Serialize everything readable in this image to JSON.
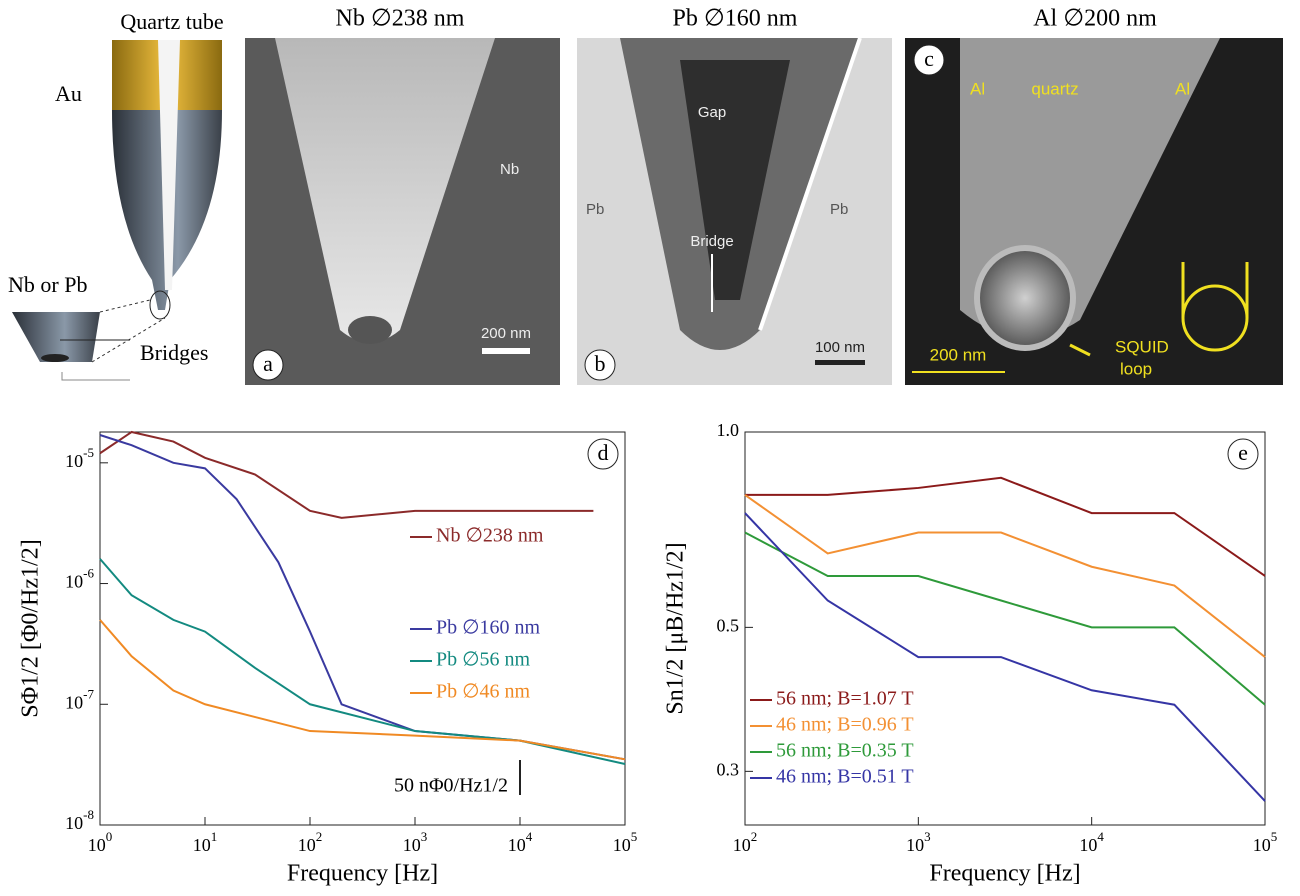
{
  "figure": {
    "schematic": {
      "quartz": "Quartz tube",
      "au": "Au",
      "nbpb": "Nb or Pb",
      "bridges": "Bridges"
    },
    "panels": [
      {
        "title": "Nb ∅238 nm",
        "letter": "a",
        "labels": [
          "Nb"
        ],
        "scale": "200 nm"
      },
      {
        "title": "Pb ∅160 nm",
        "letter": "b",
        "labels": [
          "Gap",
          "Bridge",
          "Pb",
          "Pb"
        ],
        "scale": "100 nm"
      },
      {
        "title": "Al ∅200 nm",
        "letter": "c",
        "labels": [
          "Al",
          "quartz",
          "Al",
          "SQUID",
          "loop"
        ],
        "scale": "200 nm"
      }
    ]
  },
  "chart_data": [
    {
      "type": "line",
      "panel": "d",
      "xlabel": "Frequency [Hz]",
      "ylabel": "SΦ1/2 [Φ0/Hz1/2]",
      "log_x": true,
      "log_y": true,
      "legend": "right",
      "xlim": [
        1,
        100000
      ],
      "ylim": [
        1e-08,
        1.8e-05
      ],
      "xticks": [
        {
          "value": 1,
          "label": "10",
          "power": "0"
        },
        {
          "value": 10,
          "label": "10",
          "power": "1"
        },
        {
          "value": 100,
          "label": "10",
          "power": "2"
        },
        {
          "value": 1000,
          "label": "10",
          "power": "3"
        },
        {
          "value": 10000,
          "label": "10",
          "power": "4"
        },
        {
          "value": 100000,
          "label": "10",
          "power": "5"
        }
      ],
      "yticks": [
        {
          "value": 1e-08,
          "label": "10",
          "power": "-8"
        },
        {
          "value": 1e-07,
          "label": "10",
          "power": "-7"
        },
        {
          "value": 1e-06,
          "label": "10",
          "power": "-6"
        },
        {
          "value": 1e-05,
          "label": "10",
          "power": "-5"
        }
      ],
      "annotation": {
        "text": "50 nΦ0/Hz1/2",
        "x": 10000
      },
      "series": [
        {
          "name": "Nb ∅238 nm",
          "color": "#8b2a2a",
          "x": [
            1,
            2,
            5,
            10,
            30,
            100,
            200,
            1000,
            10000,
            50000
          ],
          "values": [
            1.2e-05,
            1.8e-05,
            1.5e-05,
            1.1e-05,
            8e-06,
            4e-06,
            3.5e-06,
            4e-06,
            4e-06,
            4e-06
          ]
        },
        {
          "name": "Pb ∅160 nm",
          "color": "#3a3aa0",
          "x": [
            1,
            2,
            5,
            10,
            20,
            50,
            100,
            200,
            1000,
            10000,
            100000
          ],
          "values": [
            1.7e-05,
            1.4e-05,
            1e-05,
            9e-06,
            5e-06,
            1.5e-06,
            4e-07,
            1e-07,
            6e-08,
            5e-08,
            3.5e-08
          ]
        },
        {
          "name": "Pb ∅56 nm",
          "color": "#138a80",
          "x": [
            1,
            2,
            5,
            10,
            30,
            100,
            1000,
            10000,
            100000
          ],
          "values": [
            1.6e-06,
            8e-07,
            5e-07,
            4e-07,
            2e-07,
            1e-07,
            6e-08,
            5e-08,
            3.2e-08
          ]
        },
        {
          "name": "Pb ∅46 nm",
          "color": "#f08a24",
          "x": [
            1,
            2,
            5,
            10,
            100,
            1000,
            10000,
            100000
          ],
          "values": [
            5e-07,
            2.5e-07,
            1.3e-07,
            1e-07,
            6e-08,
            5.5e-08,
            5e-08,
            3.5e-08
          ]
        }
      ]
    },
    {
      "type": "line",
      "panel": "e",
      "xlabel": "Frequency [Hz]",
      "ylabel": "Sn1/2 [μB/Hz1/2]",
      "log_x": true,
      "log_y": true,
      "legend": "lower left",
      "xlim": [
        100,
        100000
      ],
      "ylim": [
        0.248,
        1
      ],
      "xticks": [
        {
          "value": 100,
          "label": "10",
          "power": "2"
        },
        {
          "value": 1000,
          "label": "10",
          "power": "3"
        },
        {
          "value": 10000,
          "label": "10",
          "power": "4"
        },
        {
          "value": 100000,
          "label": "10",
          "power": "5"
        }
      ],
      "yticks": [
        0.3,
        0.5,
        {
          "value": 1,
          "label": "1.0"
        }
      ],
      "series": [
        {
          "name": "56 nm; B=1.07 T",
          "color": "#8b1a1a",
          "x": [
            100,
            300,
            1000,
            3000,
            10000,
            30000,
            100000
          ],
          "values": [
            0.8,
            0.8,
            0.82,
            0.85,
            0.75,
            0.75,
            0.6
          ]
        },
        {
          "name": "46 nm; B=0.96 T",
          "color": "#f39033",
          "x": [
            100,
            300,
            1000,
            3000,
            10000,
            30000,
            100000
          ],
          "values": [
            0.8,
            0.65,
            0.7,
            0.7,
            0.62,
            0.58,
            0.45
          ]
        },
        {
          "name": "56 nm; B=0.35 T",
          "color": "#2e9a3a",
          "x": [
            100,
            300,
            1000,
            3000,
            10000,
            30000,
            100000
          ],
          "values": [
            0.7,
            0.6,
            0.6,
            0.55,
            0.5,
            0.5,
            0.38
          ]
        },
        {
          "name": "46 nm; B=0.51 T",
          "color": "#3535a5",
          "x": [
            100,
            300,
            1000,
            3000,
            10000,
            30000,
            100000
          ],
          "values": [
            0.75,
            0.55,
            0.45,
            0.45,
            0.4,
            0.38,
            0.27
          ]
        }
      ]
    }
  ]
}
